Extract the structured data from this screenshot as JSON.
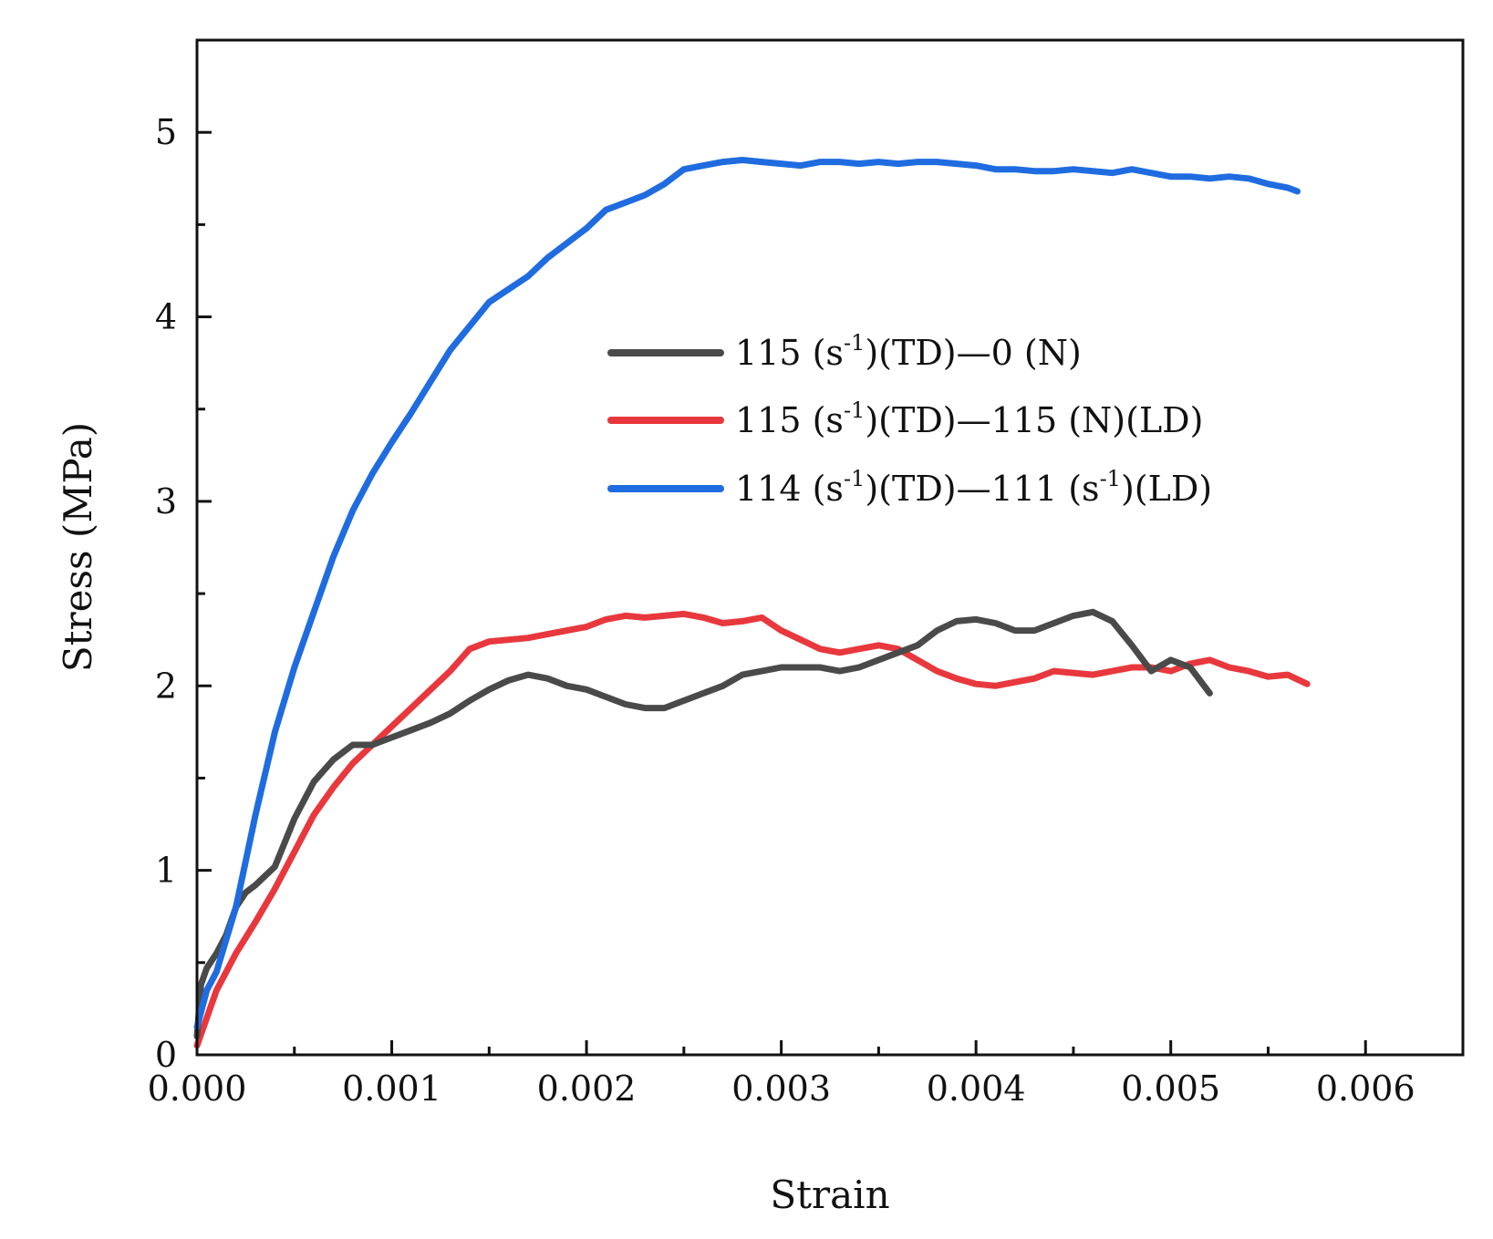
{
  "chart_data": {
    "type": "line",
    "title": "",
    "xlabel": "Strain",
    "ylabel": "Stress (MPa)",
    "xlim": [
      0,
      0.0065
    ],
    "ylim": [
      0,
      5.5
    ],
    "xticks": [
      0.0,
      0.001,
      0.002,
      0.003,
      0.004,
      0.005,
      0.006
    ],
    "xtick_labels": [
      "0.000",
      "0.001",
      "0.002",
      "0.003",
      "0.004",
      "0.005",
      "0.006"
    ],
    "yticks": [
      0,
      1,
      2,
      3,
      4,
      5
    ],
    "ytick_labels": [
      "0",
      "1",
      "2",
      "3",
      "4",
      "5"
    ],
    "grid": false,
    "legend_position": "center-right",
    "series": [
      {
        "name": "115 (s-1)(TD)—0 (N)",
        "legend": {
          "a": "115 (s",
          "sup": "-1",
          "b": ")(TD)—0 (N)"
        },
        "color": "#4a4a4a",
        "x": [
          0,
          2e-05,
          5e-05,
          0.0001,
          0.00015,
          0.0002,
          0.00025,
          0.0003,
          0.0004,
          0.0005,
          0.0006,
          0.0007,
          0.0008,
          0.0009,
          0.001,
          0.0011,
          0.0012,
          0.0013,
          0.0014,
          0.0015,
          0.0016,
          0.0017,
          0.0018,
          0.0019,
          0.002,
          0.0021,
          0.0022,
          0.0023,
          0.0024,
          0.0025,
          0.0026,
          0.0027,
          0.0028,
          0.0029,
          0.003,
          0.0031,
          0.0032,
          0.0033,
          0.0034,
          0.0035,
          0.0036,
          0.0037,
          0.0038,
          0.0039,
          0.004,
          0.0041,
          0.0042,
          0.0043,
          0.0044,
          0.0045,
          0.0046,
          0.0047,
          0.0048,
          0.0049,
          0.005,
          0.0051,
          0.0052
        ],
        "y": [
          0.1,
          0.38,
          0.47,
          0.55,
          0.65,
          0.8,
          0.88,
          0.92,
          1.02,
          1.28,
          1.48,
          1.6,
          1.68,
          1.68,
          1.72,
          1.76,
          1.8,
          1.85,
          1.92,
          1.98,
          2.03,
          2.06,
          2.04,
          2.0,
          1.98,
          1.94,
          1.9,
          1.88,
          1.88,
          1.92,
          1.96,
          2.0,
          2.06,
          2.08,
          2.1,
          2.1,
          2.1,
          2.08,
          2.1,
          2.14,
          2.18,
          2.22,
          2.3,
          2.35,
          2.36,
          2.34,
          2.3,
          2.3,
          2.34,
          2.38,
          2.4,
          2.35,
          2.22,
          2.08,
          2.14,
          2.1,
          1.96
        ]
      },
      {
        "name": "115 (s-1)(TD)—115 (N)(LD)",
        "legend": {
          "a": "115 (s",
          "sup": "-1",
          "b": ")(TD)—115 (N)(LD)"
        },
        "color": "#e8383d",
        "x": [
          0,
          5e-05,
          0.0001,
          0.0002,
          0.0003,
          0.0004,
          0.0005,
          0.0006,
          0.0007,
          0.0008,
          0.0009,
          0.001,
          0.0011,
          0.0012,
          0.0013,
          0.0014,
          0.0015,
          0.0016,
          0.0017,
          0.0018,
          0.0019,
          0.002,
          0.0021,
          0.0022,
          0.0023,
          0.0024,
          0.0025,
          0.0026,
          0.0027,
          0.0028,
          0.0029,
          0.003,
          0.0031,
          0.0032,
          0.0033,
          0.0034,
          0.0035,
          0.0036,
          0.0037,
          0.0038,
          0.0039,
          0.004,
          0.0041,
          0.0042,
          0.0043,
          0.0044,
          0.0045,
          0.0046,
          0.0047,
          0.0048,
          0.0049,
          0.005,
          0.0051,
          0.0052,
          0.0053,
          0.0054,
          0.0055,
          0.0056,
          0.0057
        ],
        "y": [
          0.05,
          0.2,
          0.35,
          0.55,
          0.72,
          0.9,
          1.1,
          1.3,
          1.45,
          1.58,
          1.68,
          1.78,
          1.88,
          1.98,
          2.08,
          2.2,
          2.24,
          2.25,
          2.26,
          2.28,
          2.3,
          2.32,
          2.36,
          2.38,
          2.37,
          2.38,
          2.39,
          2.37,
          2.34,
          2.35,
          2.37,
          2.3,
          2.25,
          2.2,
          2.18,
          2.2,
          2.22,
          2.2,
          2.14,
          2.08,
          2.04,
          2.01,
          2.0,
          2.02,
          2.04,
          2.08,
          2.07,
          2.06,
          2.08,
          2.1,
          2.1,
          2.08,
          2.12,
          2.14,
          2.1,
          2.08,
          2.05,
          2.06,
          2.01
        ]
      },
      {
        "name": "114 (s-1)(TD)—111 (s-1)(LD)",
        "legend": {
          "a": "114 (s",
          "sup": "-1",
          "b": ")(TD)—111 (s",
          "sup2": "-1",
          "c": ")(LD)"
        },
        "color": "#1f6ce0",
        "x": [
          0,
          5e-05,
          0.0001,
          0.0002,
          0.0003,
          0.0004,
          0.0005,
          0.0006,
          0.0007,
          0.0008,
          0.0009,
          0.001,
          0.0011,
          0.0012,
          0.0013,
          0.0014,
          0.0015,
          0.0016,
          0.0017,
          0.0018,
          0.0019,
          0.002,
          0.0021,
          0.0022,
          0.0023,
          0.0024,
          0.0025,
          0.0026,
          0.0027,
          0.0028,
          0.0029,
          0.003,
          0.0031,
          0.0032,
          0.0033,
          0.0034,
          0.0035,
          0.0036,
          0.0037,
          0.0038,
          0.0039,
          0.004,
          0.0041,
          0.0042,
          0.0043,
          0.0044,
          0.0045,
          0.0046,
          0.0047,
          0.0048,
          0.0049,
          0.005,
          0.0051,
          0.0052,
          0.0053,
          0.0054,
          0.0055,
          0.0056,
          0.00565
        ],
        "y": [
          0.15,
          0.35,
          0.45,
          0.8,
          1.3,
          1.75,
          2.1,
          2.4,
          2.7,
          2.95,
          3.15,
          3.32,
          3.48,
          3.65,
          3.82,
          3.95,
          4.08,
          4.15,
          4.22,
          4.32,
          4.4,
          4.48,
          4.58,
          4.62,
          4.66,
          4.72,
          4.8,
          4.82,
          4.84,
          4.85,
          4.84,
          4.83,
          4.82,
          4.84,
          4.84,
          4.83,
          4.84,
          4.83,
          4.84,
          4.84,
          4.83,
          4.82,
          4.8,
          4.8,
          4.79,
          4.79,
          4.8,
          4.79,
          4.78,
          4.8,
          4.78,
          4.76,
          4.76,
          4.75,
          4.76,
          4.75,
          4.72,
          4.7,
          4.68
        ]
      }
    ]
  }
}
